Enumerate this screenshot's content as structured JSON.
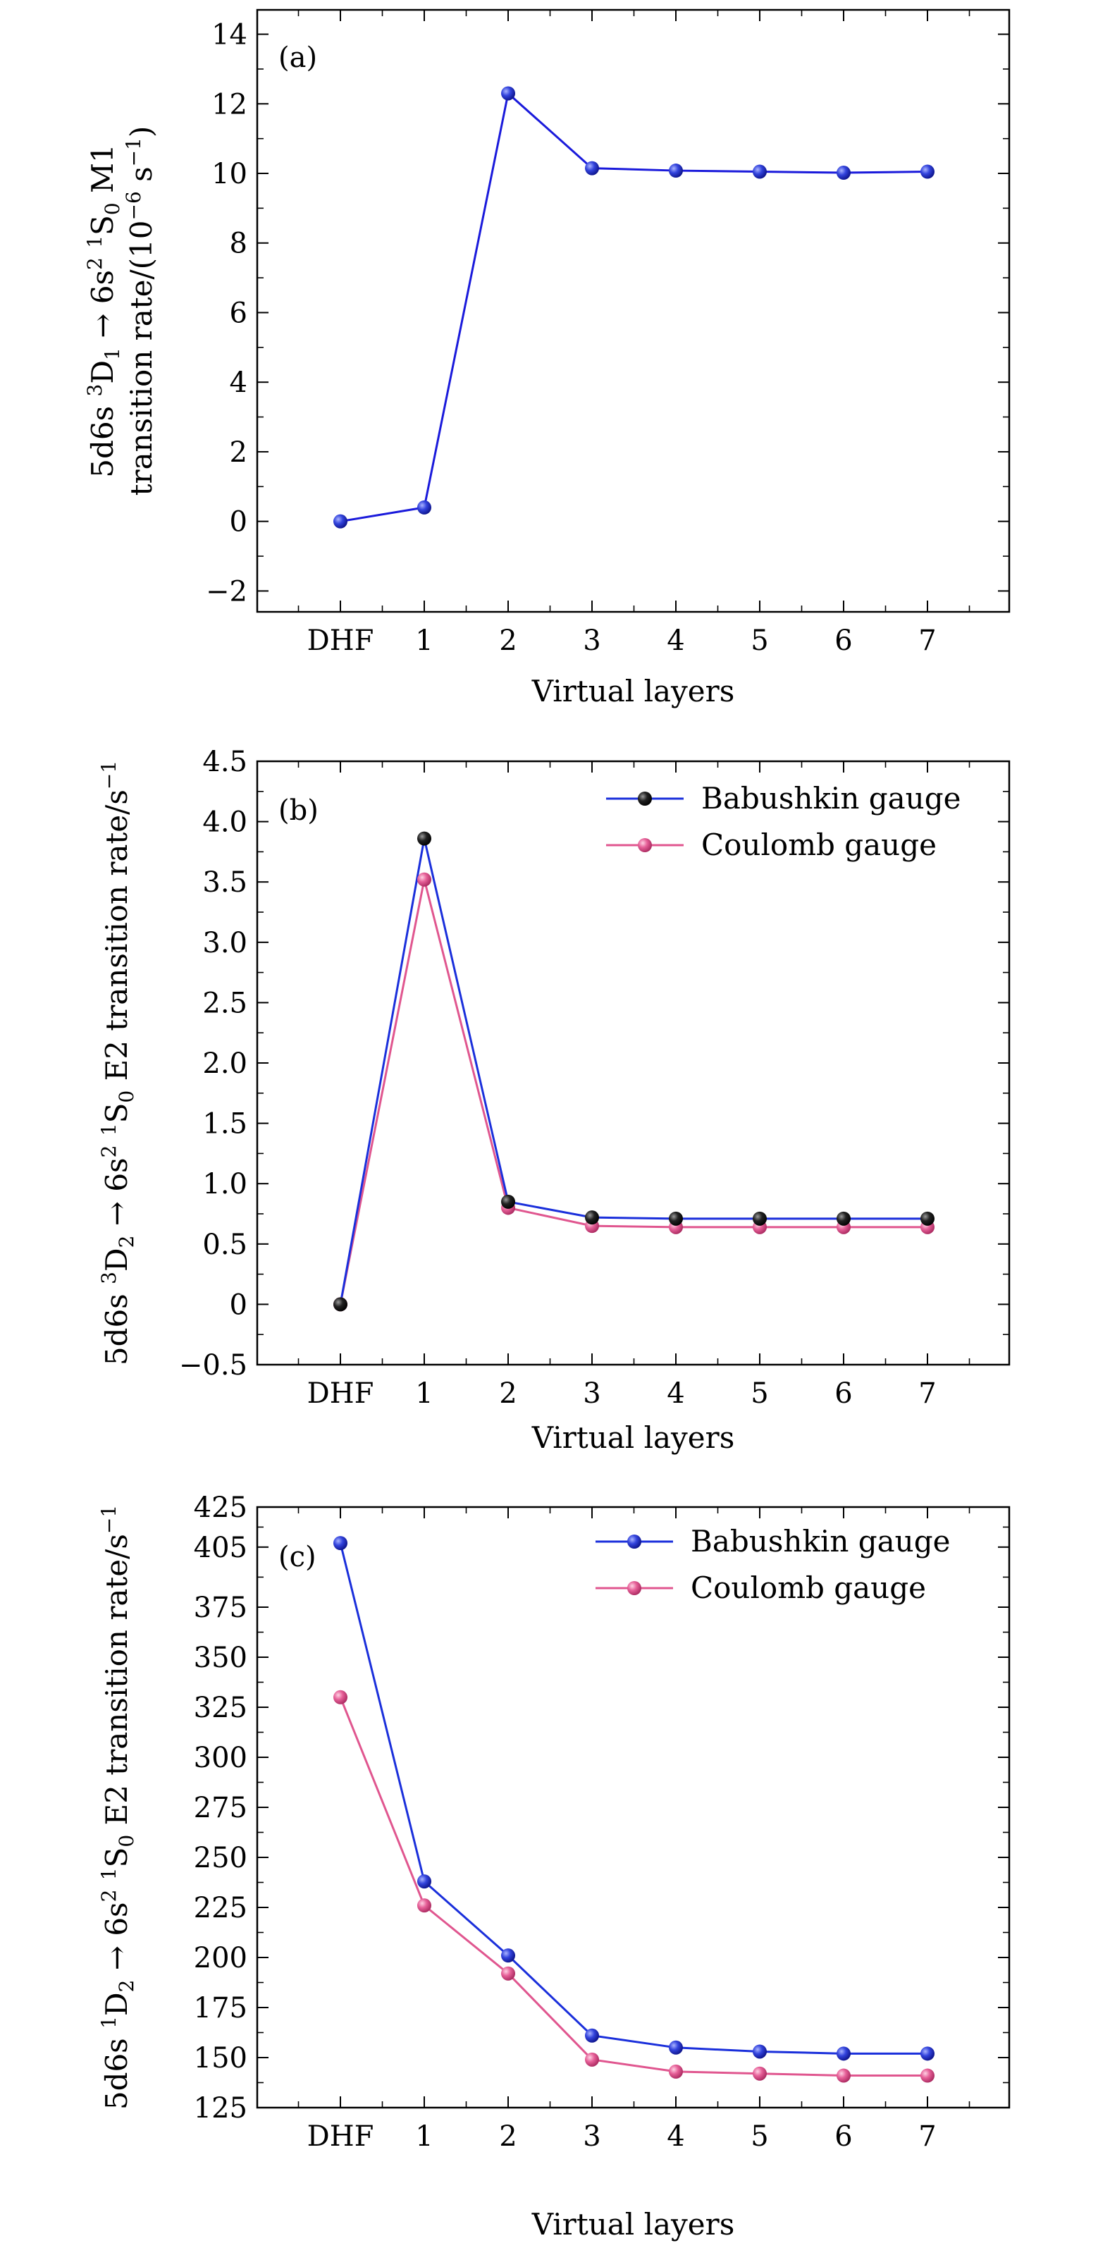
{
  "chart_data": [
    {
      "type": "line",
      "panel_label": "(a)",
      "xlabel": "Virtual layers",
      "ylabel_line1": [
        {
          "t": "5d6s "
        },
        {
          "t": "3",
          "s": "sup"
        },
        {
          "t": "D"
        },
        {
          "t": "1",
          "s": "sub"
        },
        {
          "t": " → 6s"
        },
        {
          "t": "2",
          "s": "sup"
        },
        {
          "t": " "
        },
        {
          "t": "1",
          "s": "sup"
        },
        {
          "t": "S"
        },
        {
          "t": "0",
          "s": "sub"
        },
        {
          "t": " M1"
        }
      ],
      "ylabel_line2": [
        {
          "t": "transition rate/(10"
        },
        {
          "t": "−6",
          "s": "sup"
        },
        {
          "t": " s"
        },
        {
          "t": "−1",
          "s": "sup"
        },
        {
          "t": ")"
        }
      ],
      "categories": [
        "DHF",
        "1",
        "2",
        "3",
        "4",
        "5",
        "6",
        "7"
      ],
      "ylim": [
        -2.6,
        14.7
      ],
      "yticks": [
        -2,
        0,
        2,
        4,
        6,
        8,
        10,
        12,
        14
      ],
      "ytick_labels": [
        "−2",
        "0",
        "2",
        "4",
        "6",
        "8",
        "10",
        "12",
        "14"
      ],
      "legend": false,
      "series": [
        {
          "values": [
            0.0,
            0.4,
            12.3,
            10.15,
            10.08,
            10.05,
            10.02,
            10.05
          ],
          "line_color": "#1a1adb",
          "marker_color": "#2222cc"
        }
      ]
    },
    {
      "type": "line",
      "panel_label": "(b)",
      "xlabel": "Virtual layers",
      "ylabel_line1": [
        {
          "t": "5d6s "
        },
        {
          "t": "3",
          "s": "sup"
        },
        {
          "t": "D"
        },
        {
          "t": "2",
          "s": "sub"
        },
        {
          "t": " → 6s"
        },
        {
          "t": "2",
          "s": "sup"
        },
        {
          "t": " "
        },
        {
          "t": "1",
          "s": "sup"
        },
        {
          "t": "S"
        },
        {
          "t": "0",
          "s": "sub"
        },
        {
          "t": " E2 transition rate/s"
        },
        {
          "t": "−1",
          "s": "sup"
        }
      ],
      "categories": [
        "DHF",
        "1",
        "2",
        "3",
        "4",
        "5",
        "6",
        "7"
      ],
      "ylim": [
        -0.5,
        4.5
      ],
      "yticks": [
        -0.5,
        0,
        0.5,
        1.0,
        1.5,
        2.0,
        2.5,
        3.0,
        3.5,
        4.0,
        4.5
      ],
      "ytick_labels": [
        "−0.5",
        "0",
        "0.5",
        "1.0",
        "1.5",
        "2.0",
        "2.5",
        "3.0",
        "3.5",
        "4.0",
        "4.5"
      ],
      "legend": true,
      "series": [
        {
          "name": "Babushkin gauge",
          "values": [
            0.0,
            3.86,
            0.85,
            0.72,
            0.71,
            0.71,
            0.71,
            0.71
          ],
          "line_color": "#1a2fdb",
          "marker_color": "#111111"
        },
        {
          "name": "Coulomb gauge",
          "values": [
            0.0,
            3.52,
            0.8,
            0.65,
            0.64,
            0.64,
            0.64,
            0.64
          ],
          "line_color": "#e0568f",
          "marker_color": "#e0568f"
        }
      ]
    },
    {
      "type": "line",
      "panel_label": "(c)",
      "xlabel": "Virtual layers",
      "ylabel_line1": [
        {
          "t": "5d6s "
        },
        {
          "t": "1",
          "s": "sup"
        },
        {
          "t": "D"
        },
        {
          "t": "2",
          "s": "sub"
        },
        {
          "t": " → 6s"
        },
        {
          "t": "2",
          "s": "sup"
        },
        {
          "t": " "
        },
        {
          "t": "1",
          "s": "sup"
        },
        {
          "t": "S"
        },
        {
          "t": "0",
          "s": "sub"
        },
        {
          "t": " E2 transition rate/s"
        },
        {
          "t": "−1",
          "s": "sup"
        }
      ],
      "categories": [
        "DHF",
        "1",
        "2",
        "3",
        "4",
        "5",
        "6",
        "7"
      ],
      "ylim": [
        125,
        425
      ],
      "yticks": [
        125,
        150,
        175,
        200,
        225,
        250,
        275,
        300,
        325,
        350,
        375,
        405,
        425
      ],
      "ytick_labels": [
        "125",
        "150",
        "175",
        "200",
        "225",
        "250",
        "275",
        "300",
        "325",
        "350",
        "375",
        "405",
        "425"
      ],
      "legend": true,
      "series": [
        {
          "name": "Babushkin gauge",
          "values": [
            407,
            238,
            201,
            161,
            155,
            153,
            152,
            152
          ],
          "line_color": "#1a2fdb",
          "marker_color": "#2a3ee0"
        },
        {
          "name": "Coulomb gauge",
          "values": [
            330,
            226,
            192,
            149,
            143,
            142,
            141,
            141
          ],
          "line_color": "#e0568f",
          "marker_color": "#e0568f"
        }
      ]
    }
  ]
}
